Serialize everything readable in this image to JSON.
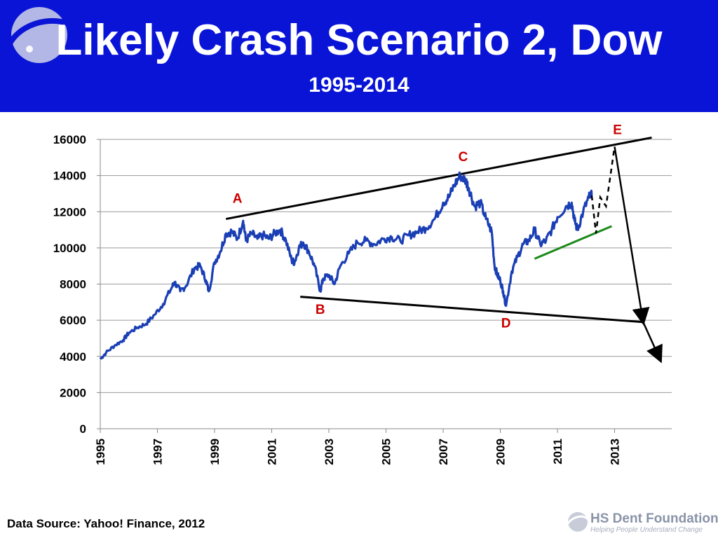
{
  "slide": {
    "title": "Likely Crash Scenario 2, Dow",
    "subtitle": "1995-2014",
    "source": "Data Source: Yahoo! Finance, 2012",
    "logo_name": "HS Dent Foundation",
    "logo_tagline": "Helping People Understand Change",
    "header_color": "#0a14d6",
    "logo_icon": "swoosh-planet-icon"
  },
  "chart_data": {
    "type": "line",
    "title": "Likely Crash Scenario 2, Dow",
    "xlabel": "",
    "ylabel": "",
    "xlim": [
      1995,
      2015
    ],
    "ylim": [
      0,
      16000
    ],
    "grid": true,
    "yticks": [
      0,
      2000,
      4000,
      6000,
      8000,
      10000,
      12000,
      14000,
      16000
    ],
    "ytick_labels": [
      "0",
      "2000",
      "4000",
      "6000",
      "8000",
      "10000",
      "12000",
      "14000",
      "16000"
    ],
    "xticks": [
      1995,
      1997,
      1999,
      2001,
      2003,
      2005,
      2007,
      2009,
      2011,
      2013
    ],
    "xtick_labels": [
      "1995",
      "1997",
      "1999",
      "2001",
      "2003",
      "2005",
      "2007",
      "2009",
      "2011",
      "2013"
    ],
    "series": [
      {
        "color": "#1a3fb5",
        "x": [
          1995.0,
          1995.2,
          1995.5,
          1995.8,
          1996.0,
          1996.3,
          1996.6,
          1996.9,
          1997.2,
          1997.5,
          1997.6,
          1997.8,
          1998.0,
          1998.3,
          1998.5,
          1998.7,
          1998.8,
          1999.0,
          1999.2,
          1999.4,
          1999.6,
          1999.8,
          2000.0,
          2000.1,
          2000.3,
          2000.5,
          2000.7,
          2000.9,
          2001.1,
          2001.3,
          2001.5,
          2001.7,
          2001.8,
          2001.95,
          2002.1,
          2002.3,
          2002.5,
          2002.7,
          2002.8,
          2003.0,
          2003.2,
          2003.4,
          2003.7,
          2004.0,
          2004.3,
          2004.6,
          2004.9,
          2005.2,
          2005.5,
          2005.8,
          2006.1,
          2006.4,
          2006.7,
          2007.0,
          2007.2,
          2007.4,
          2007.6,
          2007.8,
          2007.9,
          2008.1,
          2008.3,
          2008.5,
          2008.7,
          2008.8,
          2008.9,
          2009.0,
          2009.1,
          2009.2,
          2009.4,
          2009.6,
          2009.8,
          2010.0,
          2010.2,
          2010.4,
          2010.6,
          2010.8,
          2011.0,
          2011.3,
          2011.5,
          2011.6,
          2011.7,
          2011.9,
          2012.1,
          2012.2
        ],
        "y": [
          3850,
          4200,
          4600,
          4900,
          5300,
          5600,
          5800,
          6300,
          6900,
          7800,
          8100,
          7600,
          7900,
          8900,
          9000,
          8200,
          7600,
          9200,
          9800,
          10800,
          10900,
          10500,
          11500,
          10400,
          10800,
          10500,
          10700,
          10500,
          10800,
          11000,
          10400,
          9300,
          9200,
          10000,
          10300,
          9800,
          9000,
          7600,
          8300,
          8500,
          8000,
          9000,
          9700,
          10300,
          10400,
          10200,
          10500,
          10600,
          10400,
          10700,
          10900,
          11100,
          11600,
          12500,
          12800,
          13500,
          14000,
          13700,
          13300,
          12300,
          12500,
          11600,
          10900,
          9000,
          8500,
          8200,
          7600,
          6800,
          8700,
          9500,
          10200,
          10400,
          11000,
          10200,
          10400,
          11000,
          11700,
          12300,
          12500,
          11500,
          11000,
          12000,
          12800,
          12900
        ]
      }
    ],
    "projection": {
      "style": "dashed",
      "x": [
        2012.2,
        2012.35,
        2012.5,
        2012.7,
        2013.0
      ],
      "y": [
        12900,
        10800,
        12800,
        12300,
        15600
      ]
    },
    "trendlines": [
      {
        "name": "upper",
        "color": "#000000",
        "x": [
          1999.4,
          2014.3
        ],
        "y": [
          11600,
          16100
        ]
      },
      {
        "name": "lower",
        "color": "#000000",
        "x": [
          2002.0,
          2014.0
        ],
        "y": [
          7300,
          5900
        ]
      },
      {
        "name": "support",
        "color": "#1a8a1a",
        "x": [
          2010.2,
          2012.9
        ],
        "y": [
          9400,
          11200
        ]
      }
    ],
    "arrows": [
      {
        "x": [
          2013.0,
          2014.0
        ],
        "y": [
          15600,
          5900
        ]
      },
      {
        "x": [
          2014.0,
          2014.6
        ],
        "y": [
          5900,
          3800
        ]
      }
    ],
    "annotations": [
      {
        "text": "A",
        "x": 1999.8,
        "y": 12500,
        "color": "#cc0000"
      },
      {
        "text": "B",
        "x": 2002.7,
        "y": 6350,
        "color": "#cc0000"
      },
      {
        "text": "C",
        "x": 2007.7,
        "y": 14800,
        "color": "#cc0000"
      },
      {
        "text": "D",
        "x": 2009.2,
        "y": 5600,
        "color": "#cc0000"
      },
      {
        "text": "E",
        "x": 2013.1,
        "y": 16300,
        "color": "#cc0000"
      }
    ]
  }
}
